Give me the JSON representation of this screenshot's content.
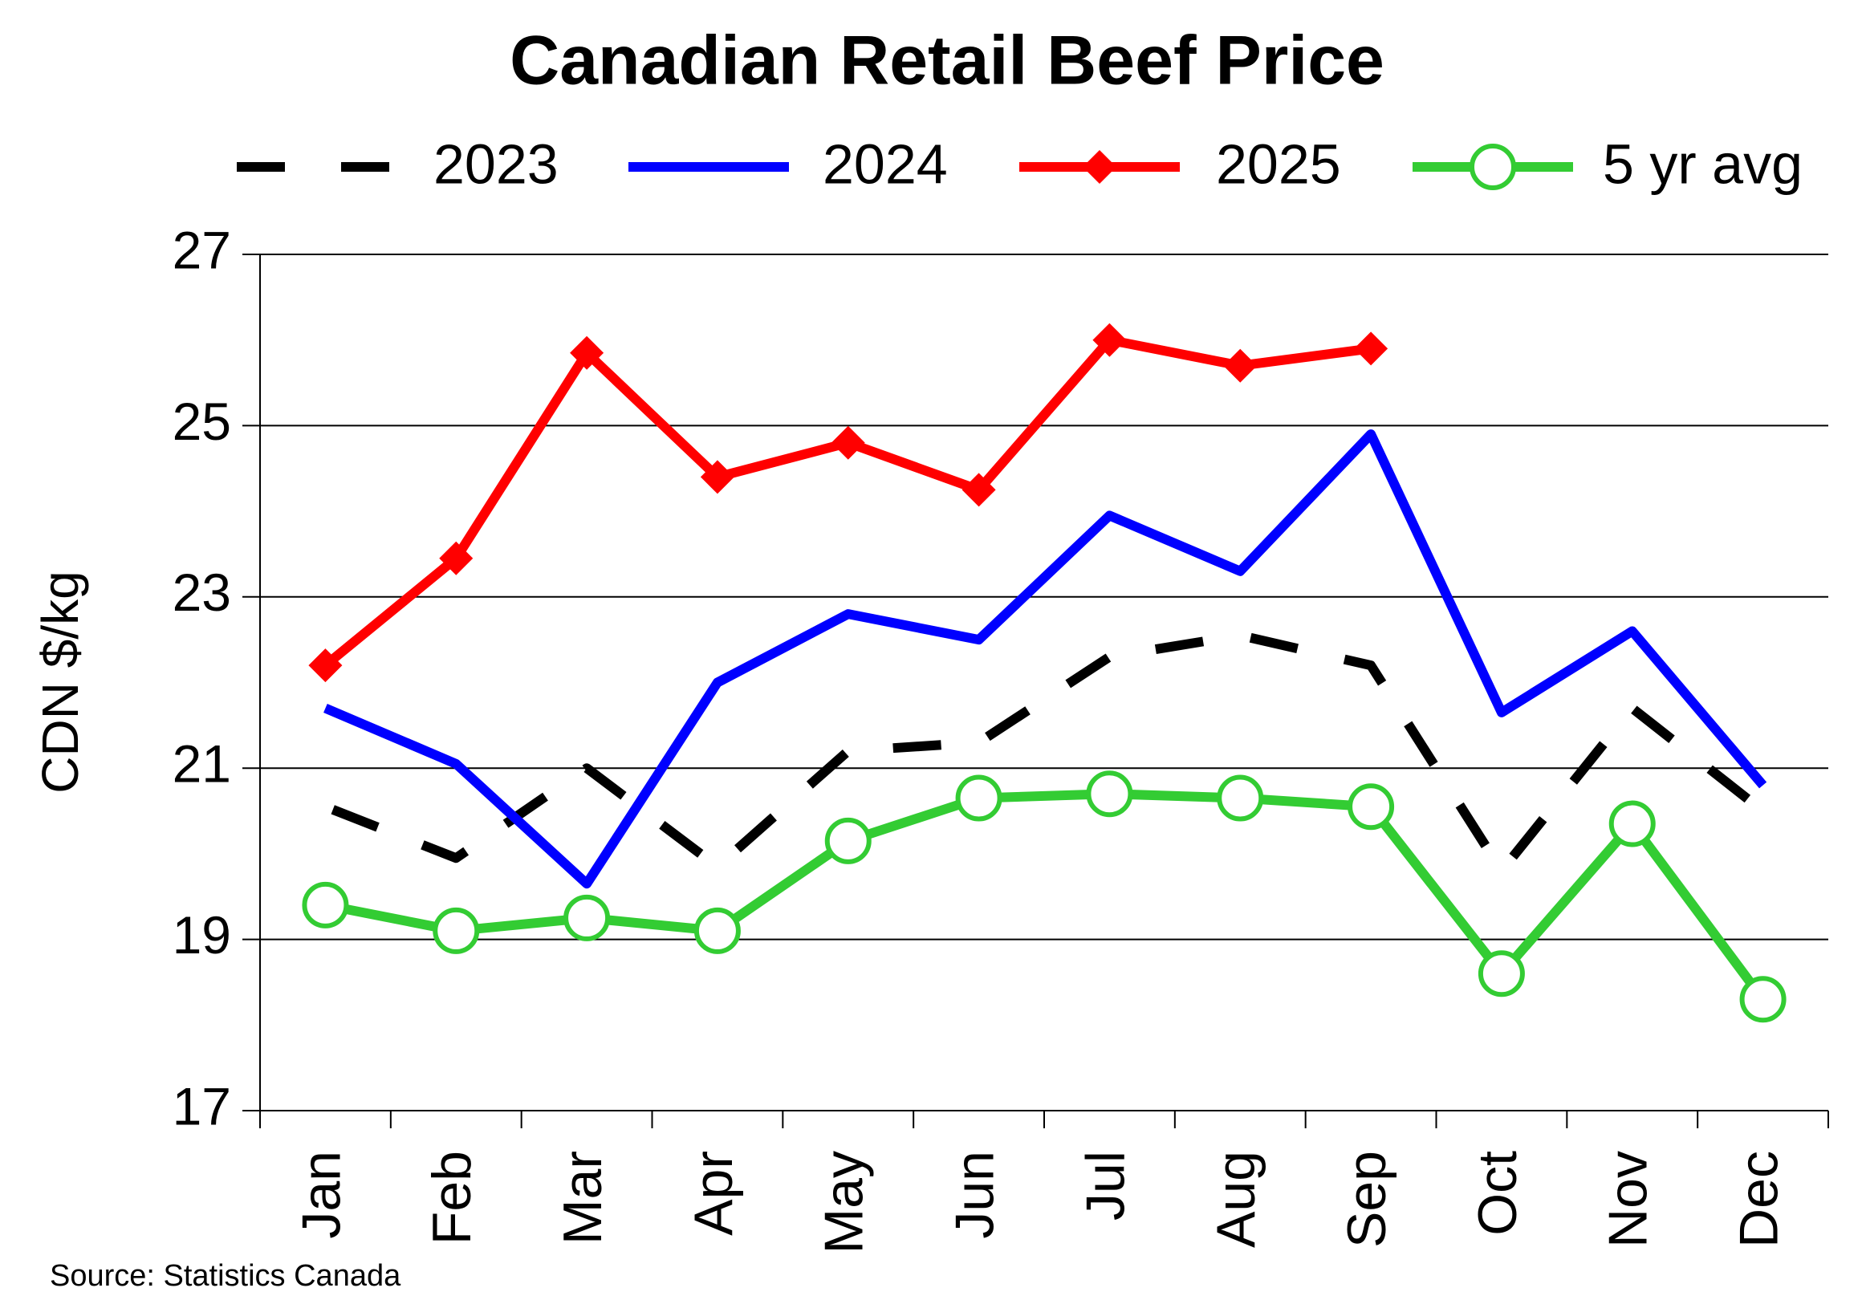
{
  "chart_data": {
    "type": "line",
    "title": "Canadian Retail Beef Price",
    "y_label": "CDN $/kg",
    "source": "Source: Statistics Canada",
    "categories": [
      "Jan",
      "Feb",
      "Mar",
      "Apr",
      "May",
      "Jun",
      "Jul",
      "Aug",
      "Sep",
      "Oct",
      "Nov",
      "Dec"
    ],
    "ylim": [
      17,
      27
    ],
    "yticks": [
      17,
      19,
      21,
      23,
      25,
      27
    ],
    "grid": true,
    "legend": "top",
    "series": [
      {
        "name": "2023",
        "color": "#000000",
        "style": "dashed",
        "values": [
          20.55,
          19.95,
          21.0,
          19.85,
          21.2,
          21.3,
          22.3,
          22.55,
          22.2,
          19.8,
          21.7,
          20.5
        ]
      },
      {
        "name": "2024",
        "color": "#0000ff",
        "style": "solid",
        "values": [
          21.7,
          21.05,
          19.65,
          22.0,
          22.8,
          22.5,
          23.95,
          23.3,
          24.9,
          21.65,
          22.6,
          20.8
        ]
      },
      {
        "name": "2025",
        "color": "#ff0000",
        "style": "solid",
        "marker": "diamond",
        "values": [
          22.2,
          23.45,
          25.85,
          24.4,
          24.8,
          24.25,
          26.0,
          25.7,
          25.9,
          null,
          null,
          null
        ]
      },
      {
        "name": "5 yr avg",
        "color": "#33cc33",
        "style": "solid",
        "marker": "circle",
        "values": [
          19.4,
          19.1,
          19.25,
          19.1,
          20.15,
          20.65,
          20.7,
          20.65,
          20.55,
          18.6,
          20.35,
          18.3
        ]
      }
    ]
  }
}
